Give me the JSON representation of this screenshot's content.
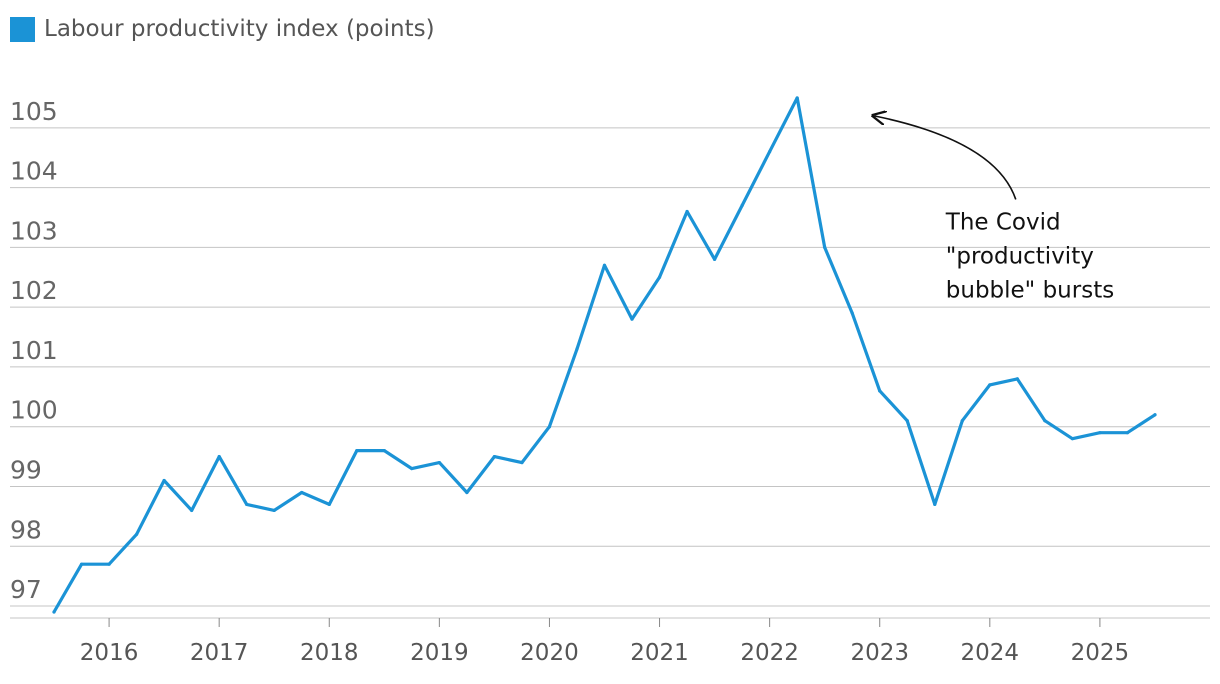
{
  "chart_data": {
    "type": "line",
    "legend": {
      "position": "top-left"
    },
    "series": [
      {
        "name": "Labour productivity index (points)",
        "color": "#1b93d6",
        "x": [
          2015.5,
          2015.75,
          2016.0,
          2016.25,
          2016.5,
          2016.75,
          2017.0,
          2017.25,
          2017.5,
          2017.75,
          2018.0,
          2018.25,
          2018.5,
          2018.75,
          2019.0,
          2019.25,
          2019.5,
          2019.75,
          2020.0,
          2020.25,
          2020.5,
          2020.75,
          2021.0,
          2021.25,
          2021.5,
          2021.75,
          2022.0,
          2022.25,
          2022.5,
          2022.75,
          2023.0,
          2023.25,
          2023.5,
          2023.75,
          2024.0,
          2024.25,
          2024.5,
          2024.75,
          2025.0,
          2025.25,
          2025.5
        ],
        "values": [
          96.9,
          97.7,
          97.7,
          98.2,
          99.1,
          98.6,
          99.5,
          98.7,
          98.6,
          98.9,
          98.7,
          99.6,
          99.6,
          99.3,
          99.4,
          98.9,
          99.5,
          99.4,
          100.0,
          101.3,
          102.7,
          101.8,
          102.5,
          103.6,
          102.8,
          103.7,
          104.6,
          105.5,
          103.0,
          101.9,
          100.6,
          100.1,
          98.7,
          100.1,
          100.7,
          100.8,
          100.1,
          99.8,
          99.9,
          99.9,
          100.2
        ]
      }
    ],
    "y_ticks": [
      "97",
      "98",
      "99",
      "100",
      "101",
      "102",
      "103",
      "104",
      "105"
    ],
    "x_ticks": [
      "2016",
      "2017",
      "2018",
      "2019",
      "2020",
      "2021",
      "2022",
      "2023",
      "2024",
      "2025"
    ],
    "ylim": [
      96.8,
      105.8
    ],
    "xlim": [
      2015.1,
      2026.0
    ],
    "grid": true,
    "annotation": {
      "lines": [
        "The Covid",
        "\"productivity",
        "bubble\" bursts"
      ],
      "x": 2023.6,
      "y": 103.3,
      "arrow_to": {
        "x": 2022.95,
        "y": 105.2
      }
    }
  }
}
